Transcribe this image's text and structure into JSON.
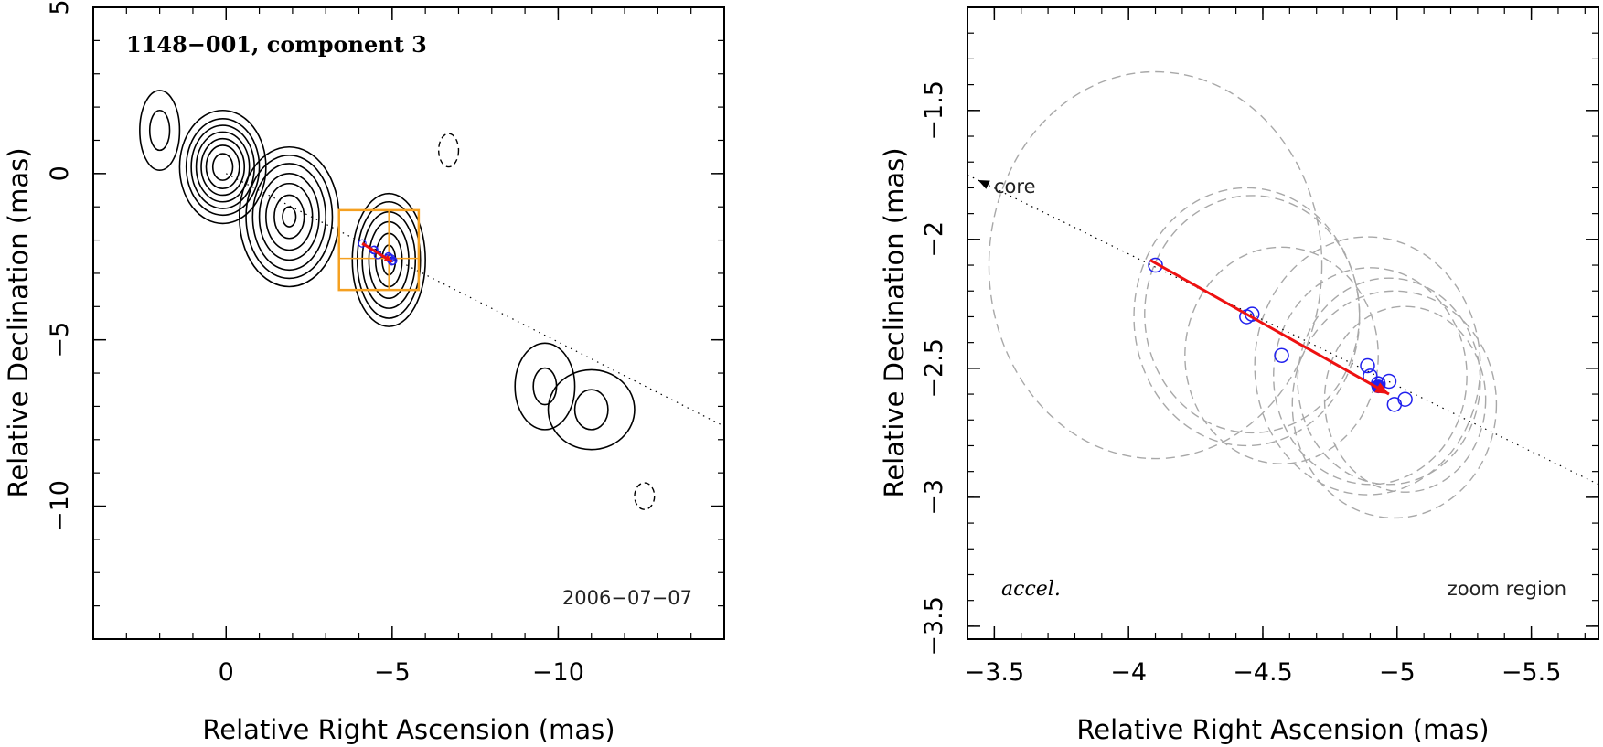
{
  "chart_data": [
    {
      "type": "contour",
      "title": "1148−001, component 3",
      "date": "2006−07−07",
      "xlabel": "Relative Right Ascension (mas)",
      "ylabel": "Relative Declination (mas)",
      "xlim": [
        4,
        -15
      ],
      "ylim": [
        -14,
        5
      ],
      "xticks": [
        0,
        -5,
        -10
      ],
      "xtick_labels": [
        "0",
        "−5",
        "−10"
      ],
      "yticks": [
        5,
        0,
        -5,
        -10
      ],
      "ytick_labels": [
        "5",
        "0",
        "−5",
        "−10"
      ],
      "jet_line": {
        "x": [
          0,
          -15
        ],
        "y": [
          0,
          -7.6
        ]
      },
      "contours": [
        {
          "name": "blob-a",
          "cx": 2,
          "cy": 1.3,
          "levels": [
            {
              "rx": 0.6,
              "ry": 1.2
            },
            {
              "rx": 0.3,
              "ry": 0.6
            }
          ]
        },
        {
          "name": "core",
          "cx": 0.1,
          "cy": 0.2,
          "levels": [
            {
              "rx": 1.3,
              "ry": 1.7
            },
            {
              "rx": 1.1,
              "ry": 1.45
            },
            {
              "rx": 0.95,
              "ry": 1.25
            },
            {
              "rx": 0.8,
              "ry": 1.05
            },
            {
              "rx": 0.65,
              "ry": 0.85
            },
            {
              "rx": 0.5,
              "ry": 0.65
            },
            {
              "rx": 0.3,
              "ry": 0.4
            }
          ]
        },
        {
          "name": "component-2",
          "cx": -1.9,
          "cy": -1.3,
          "levels": [
            {
              "rx": 1.5,
              "ry": 2.1
            },
            {
              "rx": 1.3,
              "ry": 1.85
            },
            {
              "rx": 1.1,
              "ry": 1.6
            },
            {
              "rx": 0.9,
              "ry": 1.3
            },
            {
              "rx": 0.7,
              "ry": 1.0
            },
            {
              "rx": 0.45,
              "ry": 0.65
            },
            {
              "rx": 0.2,
              "ry": 0.3
            }
          ]
        },
        {
          "name": "component-3",
          "cx": -4.9,
          "cy": -2.6,
          "levels": [
            {
              "rx": 1.1,
              "ry": 2.0
            },
            {
              "rx": 0.95,
              "ry": 1.75
            },
            {
              "rx": 0.8,
              "ry": 1.45
            },
            {
              "rx": 0.6,
              "ry": 1.15
            },
            {
              "rx": 0.4,
              "ry": 0.8
            },
            {
              "rx": 0.2,
              "ry": 0.45
            }
          ]
        },
        {
          "name": "outer-blob-1",
          "cx": -9.6,
          "cy": -6.4,
          "levels": [
            {
              "rx": 0.9,
              "ry": 1.3
            },
            {
              "rx": 0.35,
              "ry": 0.55
            }
          ]
        },
        {
          "name": "outer-blob-2",
          "cx": -11.0,
          "cy": -7.1,
          "levels": [
            {
              "rx": 1.3,
              "ry": 1.2
            },
            {
              "rx": 0.5,
              "ry": 0.6
            }
          ]
        }
      ],
      "negative_contours": [
        {
          "cx": -6.7,
          "cy": 0.7,
          "rx": 0.3,
          "ry": 0.5
        },
        {
          "cx": -12.6,
          "cy": -9.7,
          "rx": 0.3,
          "ry": 0.4
        }
      ],
      "zoom_box": {
        "x": [
          -3.4,
          -5.8
        ],
        "y": [
          -1.1,
          -3.5
        ],
        "cross_x": -4.9,
        "cross_y": -2.55
      },
      "velocity_arrow": {
        "x": [
          -4.1,
          -5.0
        ],
        "y": [
          -2.1,
          -2.65
        ]
      },
      "colors": {
        "contour": "#000000",
        "zoom_box": "#f5a020",
        "arrow": "#ee1111",
        "points": "#2020ee"
      }
    },
    {
      "type": "scatter",
      "label_left": "accel.",
      "label_right": "zoom region",
      "core_label": "core",
      "xlabel": "Relative Right Ascension (mas)",
      "ylabel": "Relative Declination (mas)",
      "xlim": [
        -3.4,
        -5.75
      ],
      "ylim": [
        -3.55,
        -1.1
      ],
      "xticks": [
        -3.5,
        -4,
        -4.5,
        -5,
        -5.5
      ],
      "xtick_labels": [
        "−3.5",
        "−4",
        "−4.5",
        "−5",
        "−5.5"
      ],
      "yticks": [
        -1.5,
        -2,
        -2.5,
        -3,
        -3.5
      ],
      "ytick_labels": [
        "−1.5",
        "−2",
        "−2.5",
        "−3",
        "−3.5"
      ],
      "points": [
        {
          "x": -4.1,
          "y": -2.1
        },
        {
          "x": -4.44,
          "y": -2.3
        },
        {
          "x": -4.46,
          "y": -2.29
        },
        {
          "x": -4.57,
          "y": -2.45
        },
        {
          "x": -4.89,
          "y": -2.49
        },
        {
          "x": -4.9,
          "y": -2.53
        },
        {
          "x": -4.93,
          "y": -2.56
        },
        {
          "x": -4.97,
          "y": -2.55
        },
        {
          "x": -4.99,
          "y": -2.64
        },
        {
          "x": -5.03,
          "y": -2.62
        }
      ],
      "filled_point": {
        "x": -4.93,
        "y": -2.57
      },
      "error_ellipses": [
        {
          "cx": -4.1,
          "cy": -2.1,
          "rx": 0.62,
          "ry": 0.75
        },
        {
          "cx": -4.44,
          "cy": -2.3,
          "rx": 0.42,
          "ry": 0.5
        },
        {
          "cx": -4.46,
          "cy": -2.29,
          "rx": 0.4,
          "ry": 0.46
        },
        {
          "cx": -4.57,
          "cy": -2.45,
          "rx": 0.36,
          "ry": 0.42
        },
        {
          "cx": -4.89,
          "cy": -2.49,
          "rx": 0.42,
          "ry": 0.5
        },
        {
          "cx": -4.9,
          "cy": -2.53,
          "rx": 0.36,
          "ry": 0.42
        },
        {
          "cx": -4.97,
          "cy": -2.55,
          "rx": 0.34,
          "ry": 0.4
        },
        {
          "cx": -4.99,
          "cy": -2.64,
          "rx": 0.38,
          "ry": 0.44
        },
        {
          "cx": -5.03,
          "cy": -2.62,
          "rx": 0.3,
          "ry": 0.36
        }
      ],
      "jet_line": {
        "x": [
          -3.4,
          -5.75
        ],
        "y": [
          -1.75,
          -2.95
        ]
      },
      "core_arrow_tip": {
        "x": -3.44,
        "y": -1.77
      },
      "velocity_arrow": {
        "x": [
          -4.08,
          -4.97
        ],
        "y": [
          -2.08,
          -2.6
        ]
      },
      "colors": {
        "ellipse": "#a8a8a8",
        "arrow": "#ee1111",
        "points": "#2020ee"
      }
    }
  ]
}
